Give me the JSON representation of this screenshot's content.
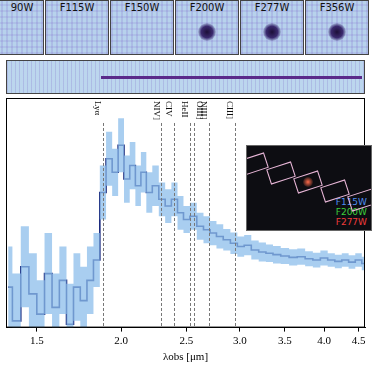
{
  "cutouts": [
    {
      "label": "90W",
      "detected": false
    },
    {
      "label": "F115W",
      "detected": false
    },
    {
      "label": "F150W",
      "detected": false
    },
    {
      "label": "F200W",
      "detected": true
    },
    {
      "label": "F277W",
      "detected": true
    },
    {
      "label": "F356W",
      "detected": true
    }
  ],
  "spectrum_2d": {
    "trace_start": 1.86
  },
  "inset": {
    "legend": [
      {
        "label": "F115W",
        "color": "#4f8ef0"
      },
      {
        "label": "F200W",
        "color": "#3ccf3c"
      },
      {
        "label": "F277W",
        "color": "#f03c3c"
      }
    ]
  },
  "chart_data": {
    "type": "line",
    "x_label": "λobs [μm]",
    "x": [
      1.36,
      1.4,
      1.44,
      1.48,
      1.52,
      1.56,
      1.6,
      1.64,
      1.68,
      1.72,
      1.76,
      1.8,
      1.84,
      1.88,
      1.92,
      1.96,
      2.0,
      2.04,
      2.08,
      2.12,
      2.16,
      2.2,
      2.25,
      2.3,
      2.35,
      2.4,
      2.45,
      2.5,
      2.56,
      2.62,
      2.68,
      2.74,
      2.8,
      2.87,
      2.94,
      3.01,
      3.08,
      3.16,
      3.24,
      3.32,
      3.4,
      3.5,
      3.6,
      3.7,
      3.8,
      3.9,
      4.0,
      4.1,
      4.2,
      4.3,
      4.4,
      4.5,
      4.6
    ],
    "values": [
      0.2,
      -0.3,
      0.5,
      0.1,
      -0.2,
      0.4,
      -0.1,
      0.3,
      -0.35,
      0.2,
      0.0,
      0.3,
      0.6,
      1.6,
      2.1,
      1.9,
      2.3,
      1.8,
      2.0,
      1.7,
      1.9,
      1.6,
      1.7,
      1.5,
      1.4,
      1.5,
      1.3,
      1.2,
      1.25,
      1.1,
      1.05,
      1.0,
      0.95,
      0.9,
      0.85,
      0.8,
      0.82,
      0.75,
      0.72,
      0.7,
      0.68,
      0.66,
      0.64,
      0.65,
      0.62,
      0.6,
      0.63,
      0.6,
      0.58,
      0.6,
      0.57,
      0.6,
      0.55
    ],
    "errors": [
      0.6,
      0.7,
      0.6,
      0.6,
      0.5,
      0.6,
      0.5,
      0.5,
      0.6,
      0.5,
      0.5,
      0.5,
      0.4,
      0.4,
      0.4,
      0.35,
      0.4,
      0.35,
      0.35,
      0.3,
      0.3,
      0.3,
      0.3,
      0.25,
      0.25,
      0.25,
      0.25,
      0.2,
      0.2,
      0.2,
      0.2,
      0.18,
      0.18,
      0.16,
      0.16,
      0.15,
      0.15,
      0.14,
      0.14,
      0.13,
      0.13,
      0.12,
      0.12,
      0.12,
      0.11,
      0.11,
      0.11,
      0.1,
      0.1,
      0.1,
      0.1,
      0.1,
      0.1
    ],
    "color": "#1b2a7e",
    "xlim": [
      1.35,
      4.6
    ],
    "xticks": [
      1.5,
      {
        "value": 2,
        "label": "2.0"
      },
      2.5,
      {
        "value": 3,
        "label": "3.0"
      },
      3.5,
      {
        "value": 4,
        "label": "4.0"
      },
      4.5
    ],
    "ylim": [
      -0.4,
      3.0
    ],
    "log": "x",
    "grid": false,
    "tick_labels": "x",
    "line_style": "dashed",
    "lines": [
      {
        "label": "Lyα",
        "x": 1.877
      },
      {
        "label": "NIV]",
        "x": 2.295
      },
      {
        "label": "CIV",
        "x": 2.392
      },
      {
        "label": "HeII",
        "x": 2.532
      },
      {
        "label": "OIII]",
        "x": 2.568
      },
      {
        "label": "NIII]",
        "x": 2.702
      },
      {
        "label": "CIII]",
        "x": 2.947
      }
    ]
  }
}
